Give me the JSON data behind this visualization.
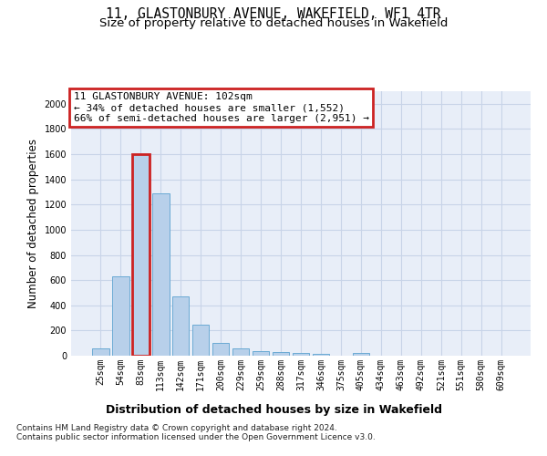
{
  "title": "11, GLASTONBURY AVENUE, WAKEFIELD, WF1 4TR",
  "subtitle": "Size of property relative to detached houses in Wakefield",
  "xlabel": "Distribution of detached houses by size in Wakefield",
  "ylabel": "Number of detached properties",
  "categories": [
    "25sqm",
    "54sqm",
    "83sqm",
    "113sqm",
    "142sqm",
    "171sqm",
    "200sqm",
    "229sqm",
    "259sqm",
    "288sqm",
    "317sqm",
    "346sqm",
    "375sqm",
    "405sqm",
    "434sqm",
    "463sqm",
    "492sqm",
    "521sqm",
    "551sqm",
    "580sqm",
    "609sqm"
  ],
  "values": [
    60,
    630,
    1600,
    1290,
    470,
    245,
    100,
    55,
    38,
    28,
    22,
    18,
    0,
    20,
    0,
    0,
    0,
    0,
    0,
    0,
    0
  ],
  "bar_color": "#b8d0ea",
  "bar_edge_color": "#6aaad4",
  "highlight_bar_index": 2,
  "highlight_bar_edge_color": "#cc2222",
  "annotation_text": "11 GLASTONBURY AVENUE: 102sqm\n← 34% of detached houses are smaller (1,552)\n66% of semi-detached houses are larger (2,951) →",
  "annotation_box_edge_color": "#cc2222",
  "ylim": [
    0,
    2100
  ],
  "yticks": [
    0,
    200,
    400,
    600,
    800,
    1000,
    1200,
    1400,
    1600,
    1800,
    2000
  ],
  "grid_color": "#c8d4e8",
  "background_color": "#e8eef8",
  "footer_text": "Contains HM Land Registry data © Crown copyright and database right 2024.\nContains public sector information licensed under the Open Government Licence v3.0.",
  "fig_width": 6.0,
  "fig_height": 5.0,
  "title_fontsize": 10.5,
  "subtitle_fontsize": 9.5,
  "xlabel_fontsize": 9,
  "ylabel_fontsize": 8.5,
  "tick_fontsize": 7,
  "annotation_fontsize": 8,
  "footer_fontsize": 6.5
}
